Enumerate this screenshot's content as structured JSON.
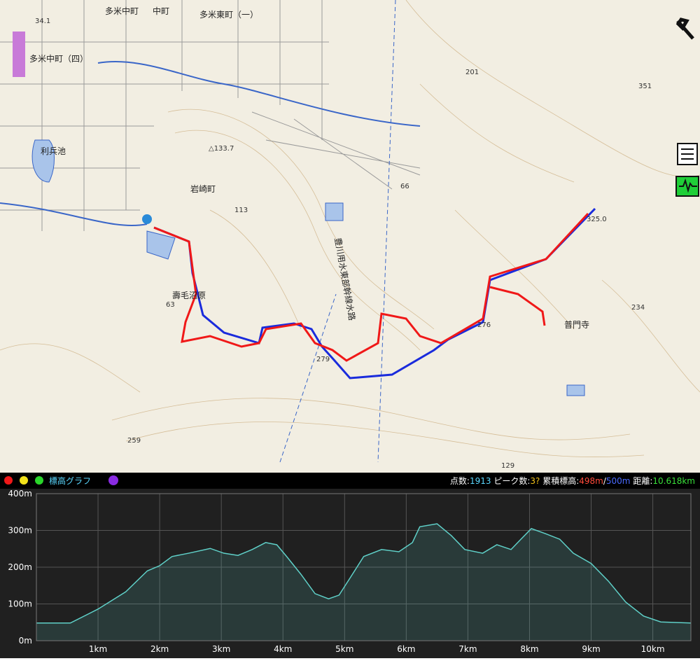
{
  "map": {
    "labels": [
      "多米東町（一）",
      "多米中町（四）",
      "岩崎町",
      "利兵池",
      "普門寺",
      "豊川用水東部幹線水路",
      "△133.7",
      "201",
      "351",
      "66",
      "113",
      "63",
      "276",
      "279",
      "325.0",
      "234",
      "259",
      "129",
      "壽毛沼原",
      "34.1",
      "中町",
      "多米中町"
    ]
  },
  "toolbar": {
    "title": "標高グラフ",
    "points_label": "点数:",
    "points": "1913",
    "peaks_label": "ピーク数:",
    "peaks": "3?",
    "gain_label": "累積標高:",
    "ascent": "498m",
    "slash": "/",
    "descent": "500m",
    "distance_label": "距離:",
    "distance": "10.618km"
  },
  "chart_data": {
    "type": "area",
    "color": "#5fd0c8",
    "x": [
      0,
      0.55,
      1.0,
      1.45,
      1.8,
      2.0,
      2.2,
      2.47,
      2.82,
      3.04,
      3.27,
      3.5,
      3.72,
      3.9,
      4.06,
      4.29,
      4.52,
      4.74,
      4.91,
      5.09,
      5.31,
      5.6,
      5.88,
      6.1,
      6.22,
      6.5,
      6.73,
      6.95,
      7.24,
      7.47,
      7.7,
      7.86,
      8.03,
      8.26,
      8.49,
      8.71,
      9.0,
      9.28,
      9.56,
      9.85,
      10.13,
      10.618
    ],
    "values": [
      48,
      48,
      86,
      133,
      190,
      204,
      229,
      238,
      251,
      238,
      232,
      248,
      267,
      261,
      229,
      181,
      128,
      114,
      124,
      171,
      229,
      248,
      242,
      267,
      310,
      318,
      286,
      248,
      238,
      261,
      248,
      276,
      305,
      291,
      276,
      238,
      210,
      162,
      105,
      67,
      51,
      48
    ],
    "xlim": [
      0,
      10.618
    ],
    "ylim": [
      0,
      400
    ],
    "xticks": [
      {
        "value": 1,
        "label": "1km"
      },
      {
        "value": 2,
        "label": "2km"
      },
      {
        "value": 3,
        "label": "3km"
      },
      {
        "value": 4,
        "label": "4km"
      },
      {
        "value": 5,
        "label": "5km"
      },
      {
        "value": 6,
        "label": "6km"
      },
      {
        "value": 7,
        "label": "7km"
      },
      {
        "value": 8,
        "label": "8km"
      },
      {
        "value": 9,
        "label": "9km"
      },
      {
        "value": 10,
        "label": "10km"
      }
    ],
    "yticks": [
      {
        "value": 0,
        "label": "0m"
      },
      {
        "value": 100,
        "label": "100m"
      },
      {
        "value": 200,
        "label": "200m"
      },
      {
        "value": 300,
        "label": "300m"
      },
      {
        "value": 400,
        "label": "400m"
      }
    ],
    "grid": true
  }
}
